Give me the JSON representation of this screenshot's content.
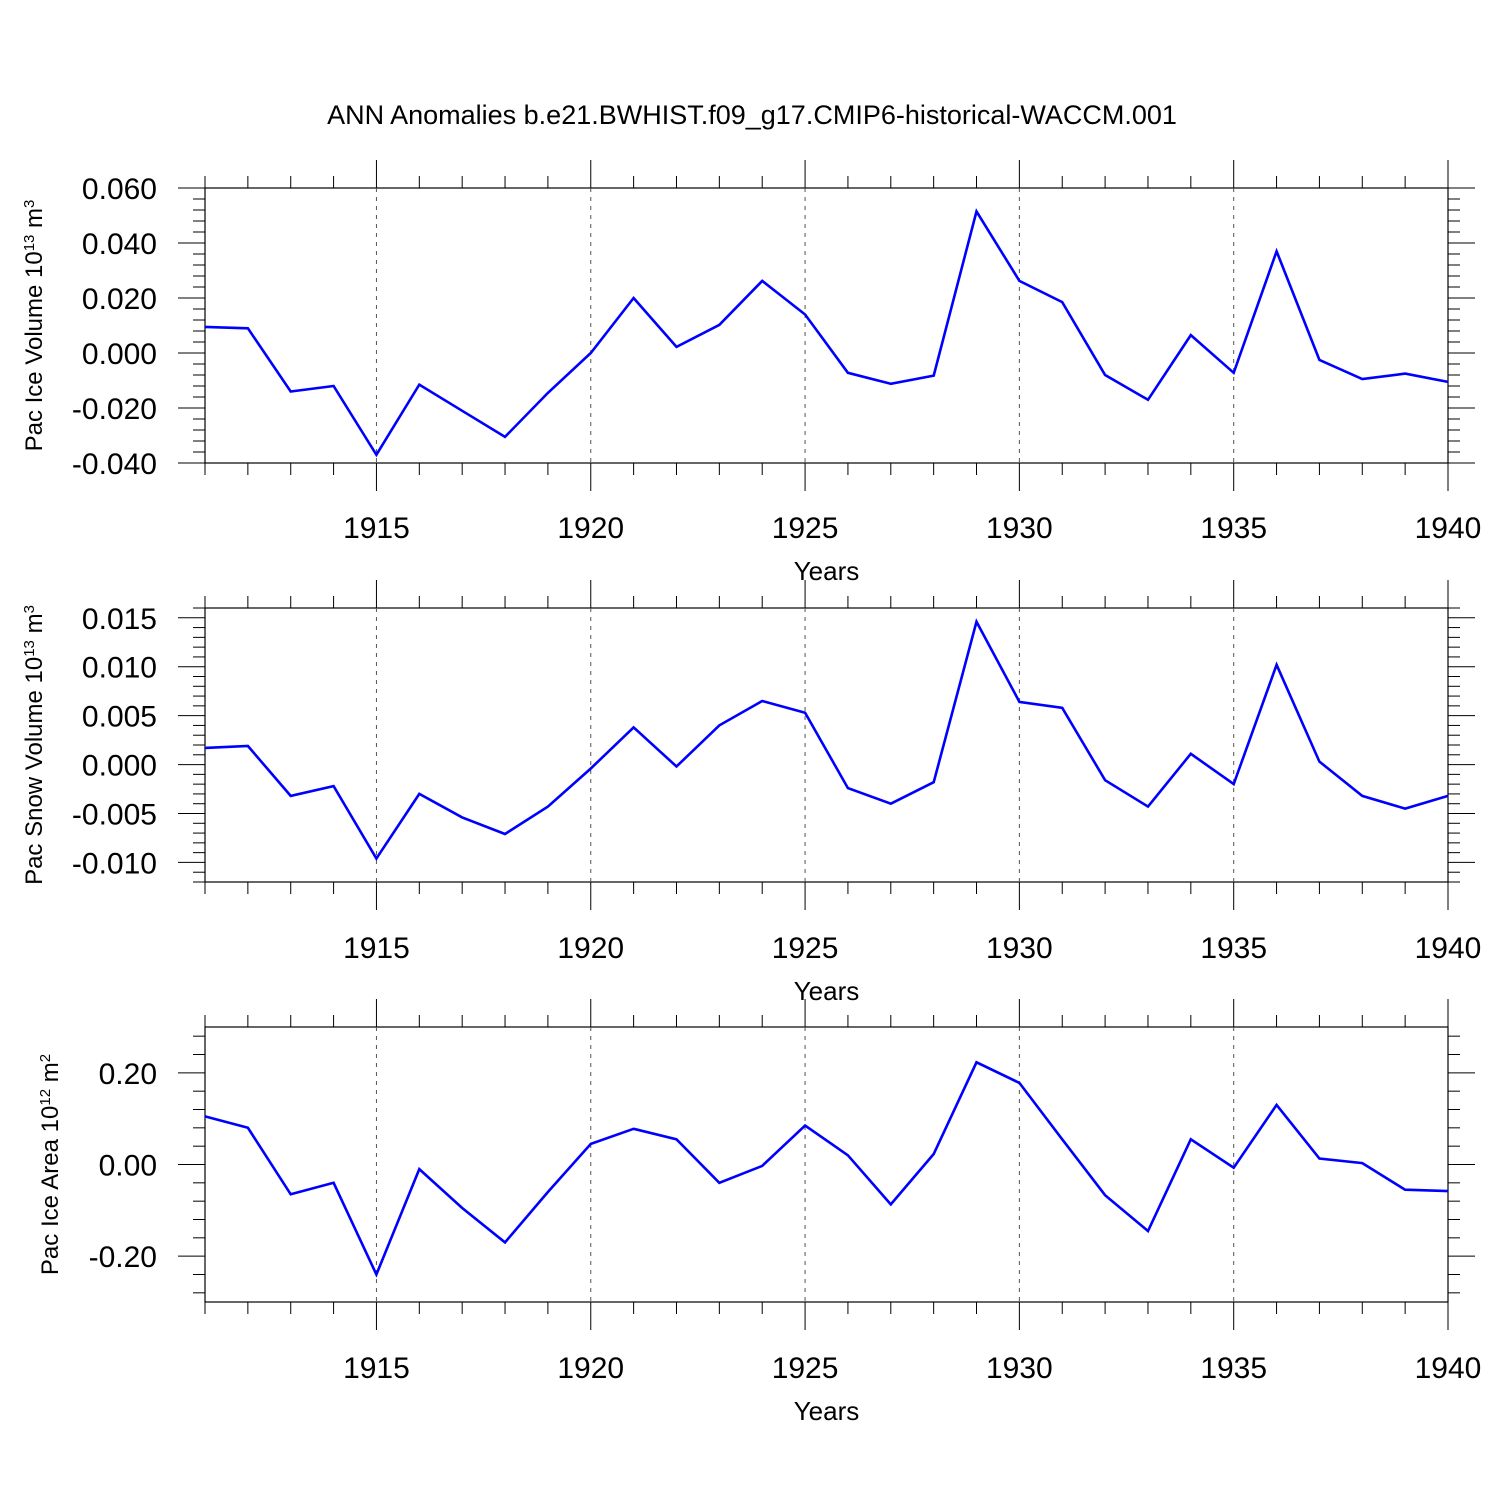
{
  "figure_title": "ANN Anomalies b.e21.BWHIST.f09_g17.CMIP6-historical-WACCM.001",
  "line_color": "#0000ff",
  "chart_data": [
    {
      "type": "line",
      "ylabel": "Pac Ice Volume",
      "yunit_base": "10",
      "yunit_exp": "13",
      "yunit_suffix": "m",
      "yunit_suffix_exp": "3",
      "xlabel": "Years",
      "xlim": [
        1911,
        1940
      ],
      "ylim": [
        -0.04,
        0.06
      ],
      "yticks": [
        -0.04,
        -0.02,
        0.0,
        0.02,
        0.04,
        0.06
      ],
      "ytick_labels": [
        "-0.040",
        "-0.020",
        "0.000",
        "0.020",
        "0.040",
        "0.060"
      ],
      "xticks": [
        1915,
        1920,
        1925,
        1930,
        1935,
        1940
      ],
      "xtick_labels": [
        "1915",
        "1920",
        "1925",
        "1930",
        "1935",
        "1940"
      ],
      "x": [
        1911,
        1912,
        1913,
        1914,
        1915,
        1916,
        1917,
        1918,
        1919,
        1920,
        1921,
        1922,
        1923,
        1924,
        1925,
        1926,
        1927,
        1928,
        1929,
        1930,
        1931,
        1932,
        1933,
        1934,
        1935,
        1936,
        1937,
        1938,
        1939,
        1940
      ],
      "y": [
        0.0095,
        0.009,
        -0.014,
        -0.012,
        -0.037,
        -0.0115,
        -0.021,
        -0.0305,
        -0.0145,
        0.0,
        0.02,
        0.0022,
        0.0102,
        0.0262,
        0.014,
        -0.0072,
        -0.0112,
        -0.0082,
        0.0515,
        0.0262,
        0.0185,
        -0.008,
        -0.017,
        0.0065,
        -0.0072,
        0.037,
        -0.0025,
        -0.0095,
        -0.0075,
        -0.0105
      ]
    },
    {
      "type": "line",
      "ylabel": "Pac Snow Volume",
      "yunit_base": "10",
      "yunit_exp": "13",
      "yunit_suffix": "m",
      "yunit_suffix_exp": "3",
      "xlabel": "Years",
      "xlim": [
        1911,
        1940
      ],
      "ylim": [
        -0.012,
        0.016
      ],
      "yticks": [
        -0.01,
        -0.005,
        0.0,
        0.005,
        0.01,
        0.015
      ],
      "ytick_labels": [
        "-0.010",
        "-0.005",
        "0.000",
        "0.005",
        "0.010",
        "0.015"
      ],
      "xticks": [
        1915,
        1920,
        1925,
        1930,
        1935,
        1940
      ],
      "xtick_labels": [
        "1915",
        "1920",
        "1925",
        "1930",
        "1935",
        "1940"
      ],
      "x": [
        1911,
        1912,
        1913,
        1914,
        1915,
        1916,
        1917,
        1918,
        1919,
        1920,
        1921,
        1922,
        1923,
        1924,
        1925,
        1926,
        1927,
        1928,
        1929,
        1930,
        1931,
        1932,
        1933,
        1934,
        1935,
        1936,
        1937,
        1938,
        1939,
        1940
      ],
      "y": [
        0.0017,
        0.0019,
        -0.0032,
        -0.0022,
        -0.0096,
        -0.003,
        -0.0054,
        -0.0071,
        -0.0043,
        -0.0004,
        0.0038,
        -0.0002,
        0.004,
        0.0065,
        0.0053,
        -0.0024,
        -0.004,
        -0.0018,
        0.0146,
        0.0064,
        0.0058,
        -0.0016,
        -0.0043,
        0.0011,
        -0.002,
        0.0102,
        0.0003,
        -0.0032,
        -0.0045,
        -0.0032
      ]
    },
    {
      "type": "line",
      "ylabel": "Pac Ice Area",
      "yunit_base": "10",
      "yunit_exp": "12",
      "yunit_suffix": "m",
      "yunit_suffix_exp": "2",
      "xlabel": "Years",
      "xlim": [
        1911,
        1940
      ],
      "ylim": [
        -0.3,
        0.3
      ],
      "yticks": [
        -0.2,
        0.0,
        0.2
      ],
      "ytick_labels": [
        "-0.20",
        "0.00",
        "0.20"
      ],
      "xticks": [
        1915,
        1920,
        1925,
        1930,
        1935,
        1940
      ],
      "xtick_labels": [
        "1915",
        "1920",
        "1925",
        "1930",
        "1935",
        "1940"
      ],
      "x": [
        1911,
        1912,
        1913,
        1914,
        1915,
        1916,
        1917,
        1918,
        1919,
        1920,
        1921,
        1922,
        1923,
        1924,
        1925,
        1926,
        1927,
        1928,
        1929,
        1930,
        1931,
        1932,
        1933,
        1934,
        1935,
        1936,
        1937,
        1938,
        1939,
        1940
      ],
      "y": [
        0.105,
        0.08,
        -0.065,
        -0.04,
        -0.24,
        -0.01,
        -0.095,
        -0.17,
        -0.06,
        0.045,
        0.078,
        0.055,
        -0.04,
        -0.003,
        0.085,
        0.02,
        -0.087,
        0.023,
        0.223,
        0.178,
        0.055,
        -0.067,
        -0.145,
        0.055,
        -0.007,
        0.13,
        0.013,
        0.003,
        -0.055,
        -0.058
      ]
    }
  ]
}
